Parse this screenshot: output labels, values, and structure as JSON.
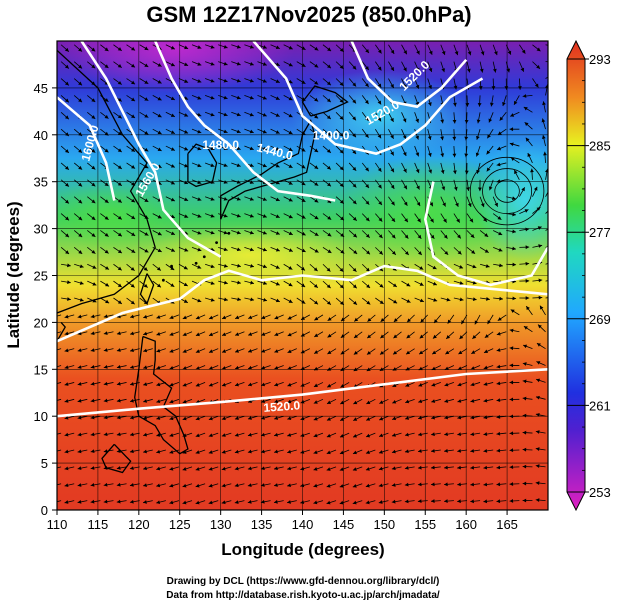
{
  "chart_data": {
    "type": "heatmap",
    "title": "GSM 12Z17Nov2025 (850.0hPa)",
    "xlabel": "Longitude (degrees)",
    "ylabel": "Latitude (degrees)",
    "xlim": [
      110,
      170
    ],
    "ylim": [
      0,
      50
    ],
    "xticks": [
      "110",
      "115",
      "120",
      "125",
      "130",
      "135",
      "140",
      "145",
      "150",
      "155",
      "160",
      "165"
    ],
    "xtick_values": [
      110,
      115,
      120,
      125,
      130,
      135,
      140,
      145,
      150,
      155,
      160,
      165
    ],
    "yticks": [
      "0",
      "5",
      "10",
      "15",
      "20",
      "25",
      "30",
      "35",
      "40",
      "45"
    ],
    "ytick_values": [
      0,
      5,
      10,
      15,
      20,
      25,
      30,
      35,
      40,
      45
    ],
    "colorbar": {
      "ticks": [
        "253",
        "261",
        "269",
        "277",
        "285",
        "293"
      ],
      "values": [
        253,
        261,
        269,
        277,
        285,
        293
      ],
      "colors": [
        "#e020c0",
        "#2020d0",
        "#20a0ff",
        "#20d060",
        "#f0f020",
        "#f08020",
        "#e03020"
      ]
    },
    "contour_labels": [
      "1400.0",
      "1440.0",
      "1480.0",
      "1520.0",
      "1520.0",
      "1520.0",
      "1600.0",
      "1560.0"
    ],
    "credits": [
      "Drawing by DCL (https://www.gfd-dennou.org/library/dcl/)",
      "Data from http://database.rish.kyoto-u.ac.jp/arch/jmadata/"
    ]
  }
}
